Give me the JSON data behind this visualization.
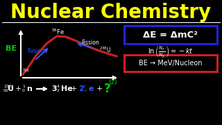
{
  "title": "Nuclear Chemistry",
  "title_color": "#FFFF00",
  "bg_color": "#000000",
  "graph": {
    "be_label": "BE",
    "be_color": "#00CC00",
    "z_label": "(z)",
    "z_color": "#00CC00",
    "fe56_label": "56Fe",
    "fe56_sup": "56",
    "u238_label": "238U",
    "h2_label": "2H",
    "curve_color": "#CC2222",
    "axis_color": "#FFFFFF",
    "fusion_color": "#3355FF",
    "fission_color": "#FFFFFF",
    "label_color": "#FFFFFF"
  },
  "eq1_text": "ΔE = ΔmC²",
  "eq1_box_color": "#2222DD",
  "eq2_color": "#FFFFFF",
  "eq3_text": "BE → MeV/Nucleon",
  "eq3_box_color": "#CC2222",
  "white": "#FFFFFF",
  "green": "#00CC00",
  "blue": "#3355FF",
  "red": "#CC2222",
  "yellow": "#FFFF00"
}
